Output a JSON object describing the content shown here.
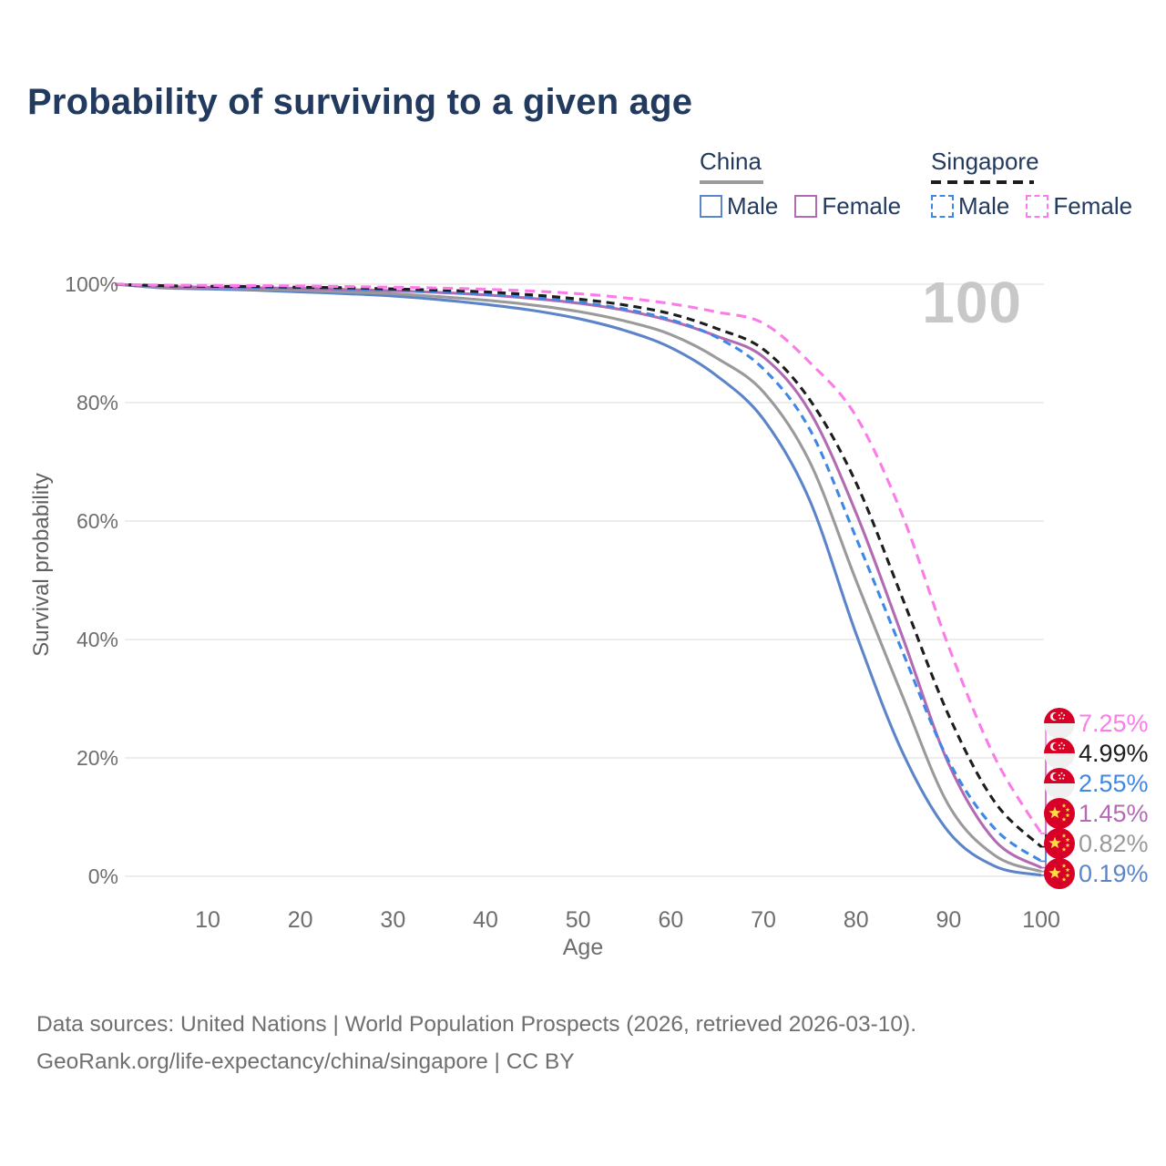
{
  "title": "Probability of surviving to a given age",
  "watermark": "100",
  "legend": {
    "groups": [
      {
        "label": "China",
        "line_style": "solid",
        "underline_color": "#9a9a9a",
        "items": [
          {
            "label": "Male",
            "color": "#5b86c9",
            "dashed": false
          },
          {
            "label": "Female",
            "color": "#b26bb3",
            "dashed": false
          }
        ]
      },
      {
        "label": "Singapore",
        "line_style": "dashed",
        "underline_color": "#1d1d1d",
        "items": [
          {
            "label": "Male",
            "color": "#3f87e5",
            "dashed": true
          },
          {
            "label": "Female",
            "color": "#fb7ce8",
            "dashed": true
          }
        ]
      }
    ]
  },
  "chart_data": {
    "type": "line",
    "xlabel": "Age",
    "ylabel": "Survival probability",
    "xlim": [
      0,
      100
    ],
    "ylim": [
      0,
      100
    ],
    "x_ticks": [
      10,
      20,
      30,
      40,
      50,
      60,
      70,
      80,
      90,
      100
    ],
    "y_ticks": [
      0,
      20,
      40,
      60,
      80,
      100
    ],
    "y_tick_suffix": "%",
    "grid": "horizontal",
    "x": [
      0,
      5,
      10,
      15,
      20,
      25,
      30,
      35,
      40,
      45,
      50,
      55,
      60,
      65,
      70,
      75,
      80,
      85,
      90,
      95,
      100
    ],
    "series": [
      {
        "name": "China Male",
        "country": "china",
        "sex": "Male",
        "flag_icon": "china-flag-icon",
        "color": "#5b84c9",
        "dashed": false,
        "end_label": "0.19%",
        "values": [
          100,
          99.4,
          99.2,
          99.0,
          98.7,
          98.4,
          98.0,
          97.4,
          96.6,
          95.6,
          94.2,
          92.2,
          89.3,
          84.5,
          77.2,
          63.5,
          41.0,
          21.0,
          7.5,
          1.7,
          0.19
        ]
      },
      {
        "name": "China Both sexes",
        "country": "china",
        "sex": "Both",
        "flag_icon": "china-flag-icon",
        "color": "#9a9a9a",
        "dashed": false,
        "end_label": "0.82%",
        "values": [
          100,
          99.5,
          99.4,
          99.2,
          99.0,
          98.7,
          98.4,
          97.9,
          97.3,
          96.5,
          95.4,
          93.8,
          91.5,
          87.5,
          81.8,
          70.0,
          50.0,
          30.5,
          12.0,
          3.5,
          0.82
        ]
      },
      {
        "name": "China Female",
        "country": "china",
        "sex": "Female",
        "flag_icon": "china-flag-icon",
        "color": "#b26bb3",
        "dashed": false,
        "end_label": "1.45%",
        "values": [
          100,
          99.6,
          99.5,
          99.4,
          99.3,
          99.1,
          98.9,
          98.6,
          98.2,
          97.6,
          96.8,
          95.6,
          93.8,
          91.2,
          87.7,
          78.5,
          61.4,
          40.5,
          19.0,
          6.0,
          1.45
        ]
      },
      {
        "name": "Singapore Male",
        "country": "singapore",
        "sex": "Male",
        "flag_icon": "singapore-flag-icon",
        "color": "#3f87e5",
        "dashed": true,
        "end_label": "2.55%",
        "values": [
          100,
          99.7,
          99.6,
          99.5,
          99.4,
          99.2,
          99.0,
          98.7,
          98.3,
          97.8,
          97.0,
          95.8,
          94.0,
          91.0,
          85.7,
          75.5,
          57.2,
          38.0,
          19.5,
          8.0,
          2.55
        ]
      },
      {
        "name": "Singapore Both sexes",
        "country": "singapore",
        "sex": "Both",
        "flag_icon": "singapore-flag-icon",
        "color": "#1d1d1d",
        "dashed": true,
        "end_label": "4.99%",
        "values": [
          100,
          99.75,
          99.65,
          99.6,
          99.5,
          99.4,
          99.2,
          99.0,
          98.7,
          98.2,
          97.5,
          96.5,
          95.0,
          92.5,
          89.0,
          80.5,
          66.5,
          47.0,
          27.2,
          12.5,
          4.99
        ]
      },
      {
        "name": "Singapore Female",
        "country": "singapore",
        "sex": "Female",
        "flag_icon": "singapore-flag-icon",
        "color": "#fb7ce8",
        "dashed": true,
        "end_label": "7.25%",
        "values": [
          100,
          99.85,
          99.8,
          99.75,
          99.7,
          99.6,
          99.5,
          99.35,
          99.15,
          98.85,
          98.4,
          97.7,
          96.7,
          95.3,
          93.4,
          86.8,
          77.7,
          61.0,
          38.8,
          20.0,
          7.25
        ]
      }
    ]
  },
  "colors": {
    "title": "#233a5f",
    "grid": "#e7e7e7",
    "axis_text": "#6e6e6e",
    "watermark": "#c8c8c8",
    "flag_red": "#d80027",
    "flag_star_yellow": "#ffda44",
    "flag_white": "#f0f0f0"
  },
  "footer": {
    "line1": "Data sources: United Nations | World Population Prospects (2026, retrieved 2026-03-10).",
    "line2": "GeoRank.org/life-expectancy/china/singapore | CC BY"
  }
}
